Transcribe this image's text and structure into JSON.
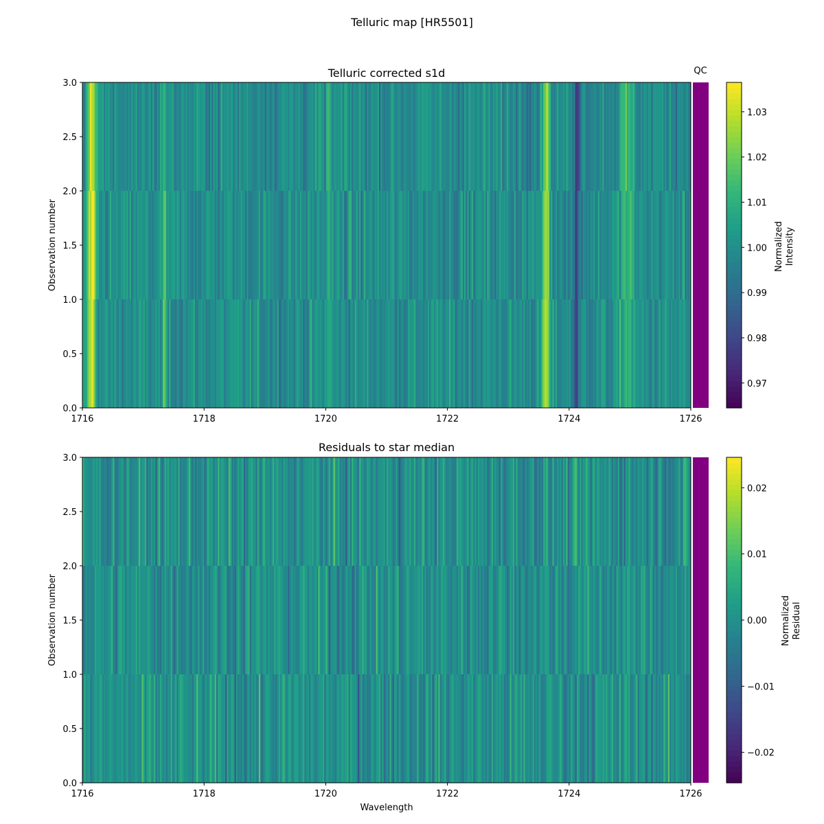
{
  "figure": {
    "suptitle": "Telluric map [HR5501]"
  },
  "chart_data": [
    {
      "type": "heatmap",
      "title": "Telluric corrected s1d",
      "xlabel": "",
      "ylabel": "Observation number",
      "xlim": [
        1716,
        1726
      ],
      "ylim": [
        0.0,
        3.0
      ],
      "xticks": [
        "1716",
        "1718",
        "1720",
        "1722",
        "1724",
        "1726"
      ],
      "yticks": [
        "0.0",
        "0.5",
        "1.0",
        "1.5",
        "2.0",
        "2.5",
        "3.0"
      ],
      "rows": 3,
      "wavelength_step": 0.025,
      "colormap": "viridis",
      "colorbar": {
        "label": [
          "Normalized",
          "Intensity"
        ],
        "range": [
          0.9645,
          1.0365
        ],
        "ticks": [
          "0.97",
          "0.98",
          "0.99",
          "1.00",
          "1.01",
          "1.02",
          "1.03"
        ]
      },
      "baseline": 1.0,
      "noise": 0.0075,
      "features": [
        {
          "center": 1716.15,
          "width": 0.05,
          "amp": 0.032
        },
        {
          "center": 1717.35,
          "width": 0.03,
          "amp": 0.012
        },
        {
          "center": 1720.05,
          "width": 0.02,
          "amp": 0.014
        },
        {
          "center": 1723.62,
          "width": 0.04,
          "amp": 0.03
        },
        {
          "center": 1724.12,
          "width": 0.04,
          "amp": -0.018
        },
        {
          "center": 1724.95,
          "width": 0.08,
          "amp": 0.012
        }
      ],
      "qc": {
        "label": "QC",
        "color": "#800080"
      }
    },
    {
      "type": "heatmap",
      "title": "Residuals to star median",
      "xlabel": "Wavelength",
      "ylabel": "Observation number",
      "xlim": [
        1716,
        1726
      ],
      "ylim": [
        0.0,
        3.0
      ],
      "xticks": [
        "1716",
        "1718",
        "1720",
        "1722",
        "1724",
        "1726"
      ],
      "yticks": [
        "0.0",
        "0.5",
        "1.0",
        "1.5",
        "2.0",
        "2.5",
        "3.0"
      ],
      "rows": 3,
      "wavelength_step": 0.025,
      "colormap": "viridis",
      "colorbar": {
        "label": [
          "Normalized",
          "Residual"
        ],
        "range": [
          -0.0246,
          0.0246
        ],
        "ticks": [
          "−0.02",
          "−0.01",
          "0.00",
          "0.01",
          "0.02"
        ]
      },
      "baseline": 0.0,
      "noise": 0.0065,
      "features": [],
      "qc": {
        "label": "",
        "color": "#800080"
      }
    }
  ],
  "colors": {
    "qc_bar": "#800080",
    "viridis": [
      "#440154",
      "#482878",
      "#3e4989",
      "#31688e",
      "#26828e",
      "#1f9e89",
      "#35b779",
      "#6ece58",
      "#b5de2b",
      "#fde725"
    ]
  }
}
